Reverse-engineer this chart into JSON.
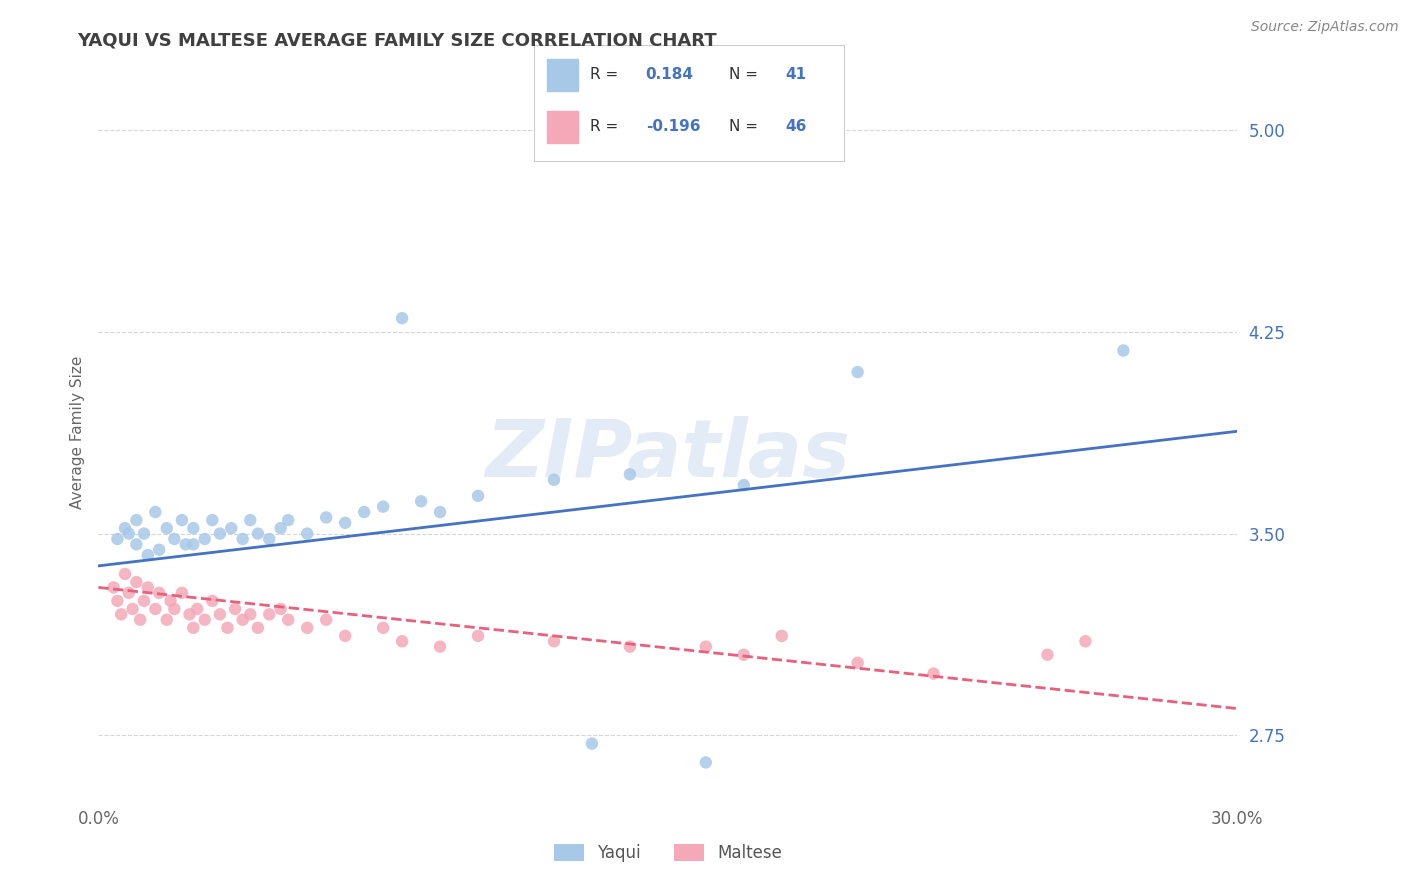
{
  "title": "YAQUI VS MALTESE AVERAGE FAMILY SIZE CORRELATION CHART",
  "source_text": "Source: ZipAtlas.com",
  "watermark": "ZIPatlas",
  "ylabel": "Average Family Size",
  "xmin": 0.0,
  "xmax": 0.3,
  "ymin": 2.5,
  "ymax": 5.25,
  "yticks": [
    2.75,
    3.5,
    4.25,
    5.0
  ],
  "xticks": [
    0.0,
    0.05,
    0.1,
    0.15,
    0.2,
    0.25,
    0.3
  ],
  "yaqui_color": "#A8C8E8",
  "maltese_color": "#F4A8B8",
  "yaqui_line_color": "#4472C4",
  "maltese_line_color": "#E8607A",
  "yaqui_R": 0.184,
  "yaqui_N": 41,
  "maltese_R": -0.196,
  "maltese_N": 46,
  "background_color": "#FFFFFF",
  "grid_color": "#BBBBBB",
  "title_color": "#404040",
  "legend_val_color": "#4472C4",
  "yaqui_scatter_x": [
    0.005,
    0.007,
    0.008,
    0.01,
    0.01,
    0.012,
    0.013,
    0.015,
    0.016,
    0.018,
    0.02,
    0.022,
    0.023,
    0.025,
    0.025,
    0.028,
    0.03,
    0.032,
    0.035,
    0.038,
    0.04,
    0.042,
    0.045,
    0.048,
    0.05,
    0.055,
    0.06,
    0.065,
    0.07,
    0.075,
    0.08,
    0.085,
    0.09,
    0.1,
    0.12,
    0.14,
    0.17,
    0.2,
    0.27,
    0.13,
    0.16
  ],
  "yaqui_scatter_y": [
    3.48,
    3.52,
    3.5,
    3.46,
    3.55,
    3.5,
    3.42,
    3.58,
    3.44,
    3.52,
    3.48,
    3.55,
    3.46,
    3.52,
    3.46,
    3.48,
    3.55,
    3.5,
    3.52,
    3.48,
    3.55,
    3.5,
    3.48,
    3.52,
    3.55,
    3.5,
    3.56,
    3.54,
    3.58,
    3.6,
    4.3,
    3.62,
    3.58,
    3.64,
    3.7,
    3.72,
    3.68,
    4.1,
    4.18,
    2.72,
    2.65
  ],
  "maltese_scatter_x": [
    0.004,
    0.005,
    0.006,
    0.007,
    0.008,
    0.009,
    0.01,
    0.011,
    0.012,
    0.013,
    0.015,
    0.016,
    0.018,
    0.019,
    0.02,
    0.022,
    0.024,
    0.025,
    0.026,
    0.028,
    0.03,
    0.032,
    0.034,
    0.036,
    0.038,
    0.04,
    0.042,
    0.045,
    0.048,
    0.05,
    0.055,
    0.06,
    0.065,
    0.075,
    0.08,
    0.09,
    0.1,
    0.12,
    0.14,
    0.17,
    0.2,
    0.22,
    0.25,
    0.16,
    0.18,
    0.26
  ],
  "maltese_scatter_y": [
    3.3,
    3.25,
    3.2,
    3.35,
    3.28,
    3.22,
    3.32,
    3.18,
    3.25,
    3.3,
    3.22,
    3.28,
    3.18,
    3.25,
    3.22,
    3.28,
    3.2,
    3.15,
    3.22,
    3.18,
    3.25,
    3.2,
    3.15,
    3.22,
    3.18,
    3.2,
    3.15,
    3.2,
    3.22,
    3.18,
    3.15,
    3.18,
    3.12,
    3.15,
    3.1,
    3.08,
    3.12,
    3.1,
    3.08,
    3.05,
    3.02,
    2.98,
    3.05,
    3.08,
    3.12,
    3.1
  ],
  "yaqui_trend_x": [
    0.0,
    0.3
  ],
  "yaqui_trend_y": [
    3.38,
    3.88
  ],
  "maltese_trend_x": [
    0.0,
    0.3
  ],
  "maltese_trend_y": [
    3.3,
    2.85
  ]
}
